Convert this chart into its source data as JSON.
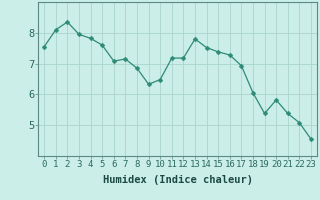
{
  "x": [
    0,
    1,
    2,
    3,
    4,
    5,
    6,
    7,
    8,
    9,
    10,
    11,
    12,
    13,
    14,
    15,
    16,
    17,
    18,
    19,
    20,
    21,
    22,
    23
  ],
  "y": [
    7.55,
    8.1,
    8.35,
    7.95,
    7.82,
    7.6,
    7.08,
    7.15,
    6.85,
    6.33,
    6.48,
    7.18,
    7.18,
    7.8,
    7.52,
    7.38,
    7.28,
    6.93,
    6.05,
    5.38,
    5.82,
    5.38,
    5.08,
    4.55
  ],
  "line_color": "#2e8b77",
  "marker": "D",
  "marker_size": 2.5,
  "bg_color": "#cceee8",
  "grid_color": "#aad4cc",
  "xlabel": "Humidex (Indice chaleur)",
  "xlim": [
    -0.5,
    23.5
  ],
  "ylim": [
    4.0,
    9.0
  ],
  "yticks": [
    5,
    6,
    7,
    8
  ],
  "xticks": [
    0,
    1,
    2,
    3,
    4,
    5,
    6,
    7,
    8,
    9,
    10,
    11,
    12,
    13,
    14,
    15,
    16,
    17,
    18,
    19,
    20,
    21,
    22,
    23
  ],
  "tick_fontsize": 6.5,
  "xlabel_fontsize": 7.5,
  "spine_color": "#5a8a82",
  "xlabel_fontweight": "bold"
}
